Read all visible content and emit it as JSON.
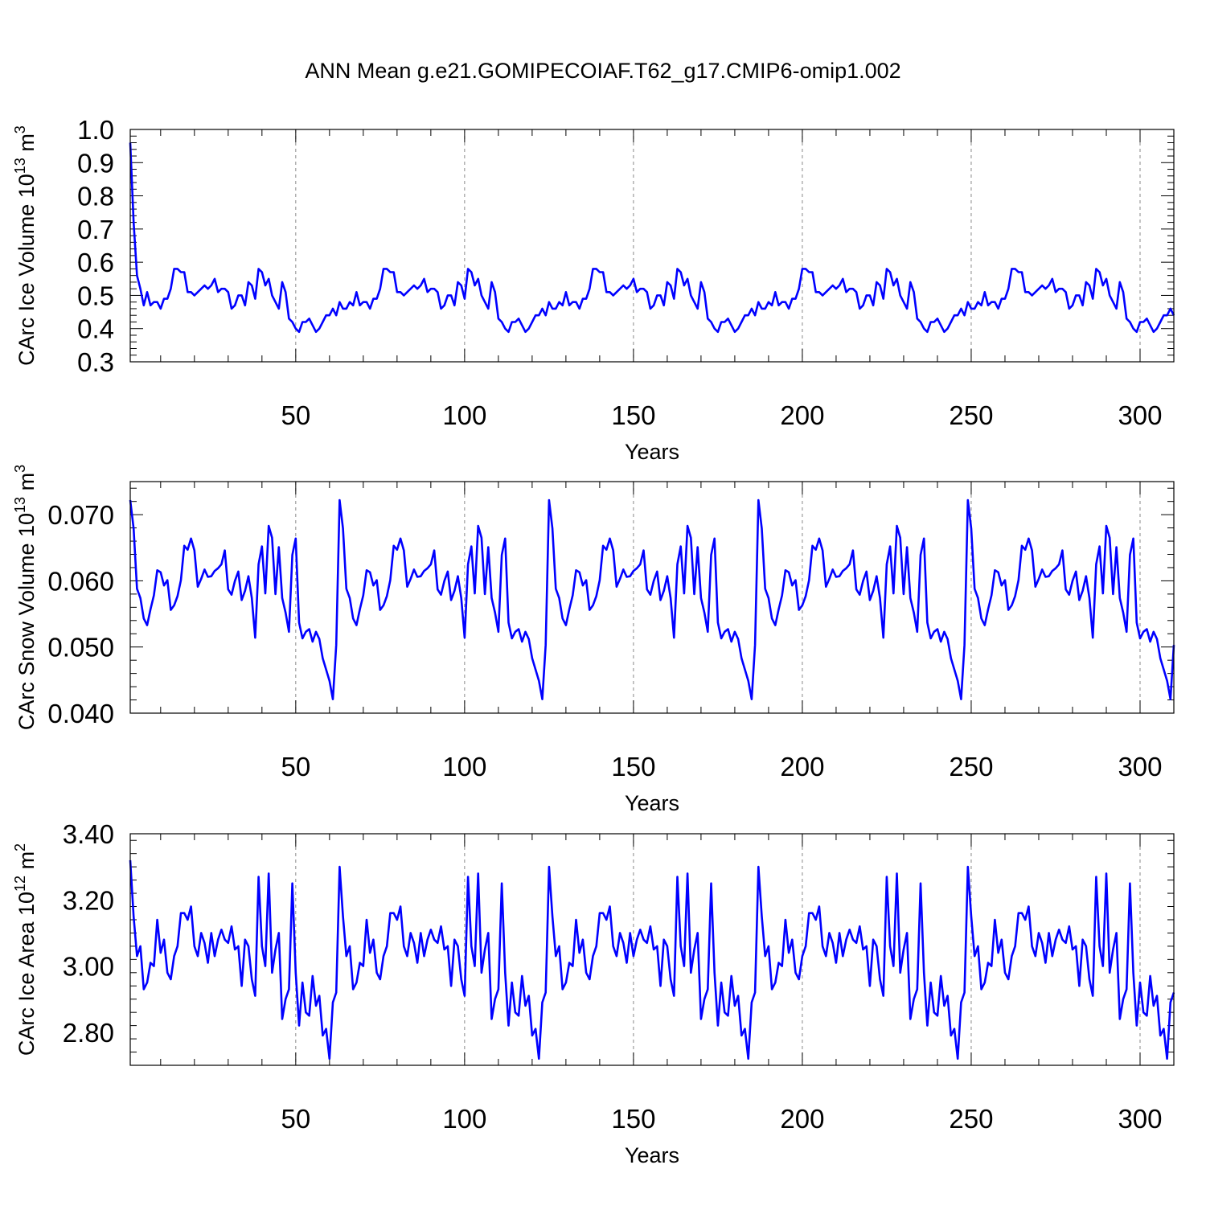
{
  "figure_title": "ANN Mean g.e21.GOMIPECOIAF.T62_g17.CMIP6-omip1.002",
  "colors": {
    "series": "#0000ff",
    "grid": "#888888"
  },
  "chart_data": [
    {
      "type": "line",
      "name": "ice-volume",
      "ylabel_main": "CArc Ice Volume 10",
      "ylabel_sup": "13",
      "ylabel_unit": " m",
      "ylabel_unit_sup": "3",
      "xlabel": "Years",
      "xlim": [
        1,
        310
      ],
      "ylim": [
        0.3,
        1.0
      ],
      "xticks": [
        50,
        100,
        150,
        200,
        250,
        300
      ],
      "xtick_labels": [
        "50",
        "100",
        "150",
        "200",
        "250",
        "300"
      ],
      "yticks": [
        0.3,
        0.4,
        0.5,
        0.6,
        0.7,
        0.8,
        0.9,
        1.0
      ],
      "ytick_labels": [
        "0.3",
        "0.4",
        "0.5",
        "0.6",
        "0.7",
        "0.8",
        "0.9",
        "1.0"
      ],
      "grid_x": true,
      "period": 62,
      "cycle": [
        0.48,
        0.46,
        0.46,
        0.48,
        0.47,
        0.51,
        0.47,
        0.48,
        0.48,
        0.46,
        0.49,
        0.49,
        0.52,
        0.58,
        0.58,
        0.57,
        0.57,
        0.51,
        0.51,
        0.5,
        0.51,
        0.52,
        0.53,
        0.52,
        0.53,
        0.55,
        0.51,
        0.52,
        0.52,
        0.51,
        0.46,
        0.47,
        0.5,
        0.5,
        0.47,
        0.54,
        0.53,
        0.49,
        0.58,
        0.57,
        0.53,
        0.55,
        0.5,
        0.48,
        0.46,
        0.54,
        0.51,
        0.43,
        0.42,
        0.4,
        0.39,
        0.42,
        0.42,
        0.43,
        0.41,
        0.39,
        0.4,
        0.42,
        0.44,
        0.44,
        0.46,
        0.44
      ],
      "initial": [
        0.96,
        0.72,
        0.56,
        0.52
      ]
    },
    {
      "type": "line",
      "name": "snow-volume",
      "ylabel_main": "CArc Snow Volume 10",
      "ylabel_sup": "13",
      "ylabel_unit": " m",
      "ylabel_unit_sup": "3",
      "xlabel": "Years",
      "xlim": [
        1,
        310
      ],
      "ylim": [
        0.04,
        0.075
      ],
      "xticks": [
        50,
        100,
        150,
        200,
        250,
        300
      ],
      "xtick_labels": [
        "50",
        "100",
        "150",
        "200",
        "250",
        "300"
      ],
      "yticks": [
        0.04,
        0.05,
        0.06,
        0.07
      ],
      "ytick_labels": [
        "0.040",
        "0.050",
        "0.060",
        "0.070"
      ],
      "grid_x": true,
      "period": 62,
      "cycle": [
        0.0722,
        0.0679,
        0.0588,
        0.0574,
        0.0543,
        0.0533,
        0.0557,
        0.0578,
        0.0616,
        0.0613,
        0.0593,
        0.0601,
        0.0556,
        0.0563,
        0.0577,
        0.0601,
        0.0653,
        0.0647,
        0.0664,
        0.0646,
        0.0591,
        0.0603,
        0.0617,
        0.0606,
        0.0607,
        0.0615,
        0.0619,
        0.0625,
        0.0646,
        0.0587,
        0.0579,
        0.06,
        0.0614,
        0.0571,
        0.0585,
        0.0607,
        0.0574,
        0.0514,
        0.0625,
        0.0652,
        0.0581,
        0.0683,
        0.0665,
        0.058,
        0.0651,
        0.0574,
        0.0552,
        0.0523,
        0.0639,
        0.0664,
        0.0537,
        0.0513,
        0.0523,
        0.0527,
        0.0508,
        0.0523,
        0.0512,
        0.0483,
        0.0466,
        0.0449,
        0.0421,
        0.0503
      ]
    },
    {
      "type": "line",
      "name": "ice-area",
      "ylabel_main": "CArc Ice Area 10",
      "ylabel_sup": "12",
      "ylabel_unit": " m",
      "ylabel_unit_sup": "2",
      "xlabel": "Years",
      "xlim": [
        1,
        310
      ],
      "ylim": [
        2.7,
        3.4
      ],
      "xticks": [
        50,
        100,
        150,
        200,
        250,
        300
      ],
      "xtick_labels": [
        "50",
        "100",
        "150",
        "200",
        "250",
        "300"
      ],
      "yticks": [
        2.8,
        3.0,
        3.2,
        3.4
      ],
      "ytick_labels": [
        "2.80",
        "3.00",
        "3.20",
        "3.40"
      ],
      "grid_x": true,
      "period": 62,
      "cycle": [
        3.3,
        3.15,
        3.03,
        3.06,
        2.93,
        2.95,
        3.01,
        3.0,
        3.14,
        3.04,
        3.08,
        2.98,
        2.96,
        3.03,
        3.06,
        3.16,
        3.16,
        3.14,
        3.18,
        3.06,
        3.03,
        3.1,
        3.07,
        3.01,
        3.1,
        3.03,
        3.08,
        3.11,
        3.08,
        3.07,
        3.12,
        3.05,
        3.06,
        2.94,
        3.08,
        3.06,
        2.96,
        2.91,
        3.27,
        3.06,
        3.0,
        3.28,
        2.98,
        3.05,
        3.1,
        2.84,
        2.9,
        2.93,
        3.25,
        2.98,
        2.82,
        2.95,
        2.86,
        2.85,
        2.97,
        2.88,
        2.91,
        2.79,
        2.81,
        2.72,
        2.89,
        2.92
      ],
      "initial": [
        3.32
      ]
    }
  ]
}
